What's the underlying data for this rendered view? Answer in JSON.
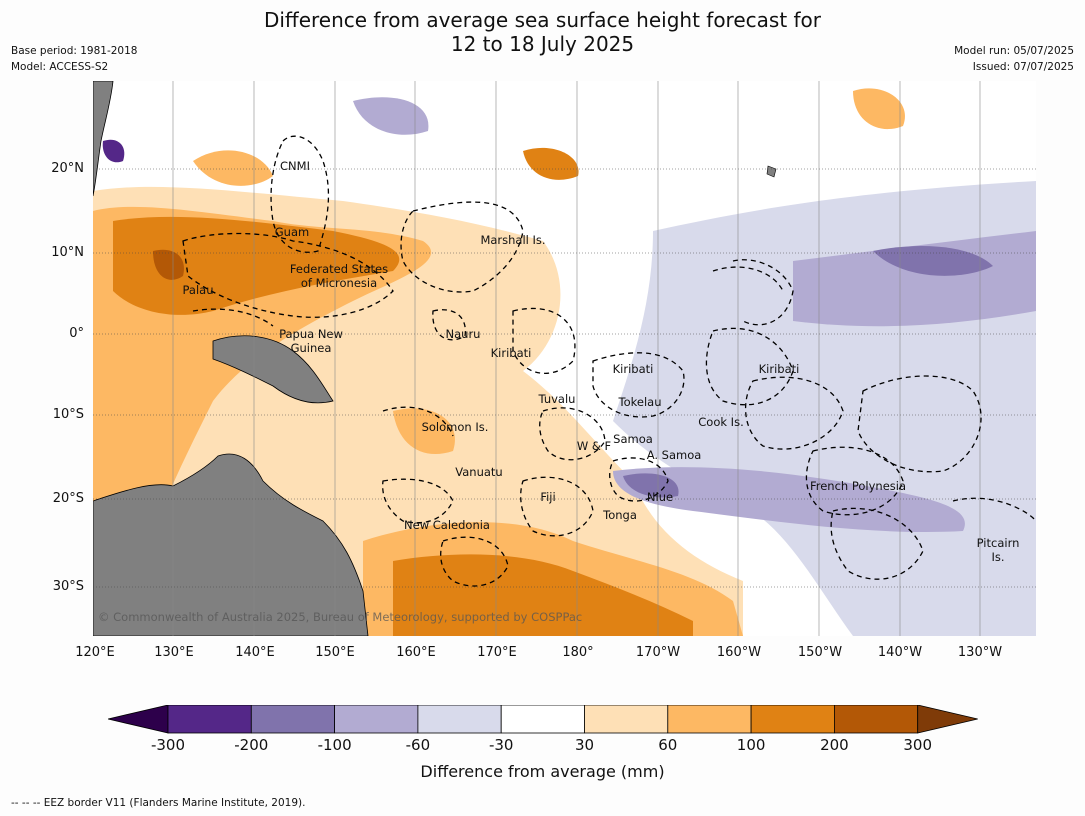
{
  "title_line1": "Difference from average sea surface height forecast for",
  "title_line2": "12 to 18 July 2025",
  "meta_left": {
    "base_period": "Base period: 1981-2018",
    "model": "Model: ACCESS-S2"
  },
  "meta_right": {
    "model_run": "Model run: 05/07/2025",
    "issued": "Issued: 07/07/2025"
  },
  "map": {
    "copyright": "© Commonwealth of Australia 2025, Bureau of Meteorology, supported by COSPPac",
    "lat_labels": [
      "20°N",
      "10°N",
      "0°",
      "10°S",
      "20°S",
      "30°S"
    ],
    "lon_labels": [
      "120°E",
      "130°E",
      "140°E",
      "150°E",
      "160°E",
      "170°E",
      "180°",
      "170°W",
      "160°W",
      "150°W",
      "140°W",
      "130°W"
    ],
    "places": [
      {
        "name": "CNMI",
        "text": "CNMI"
      },
      {
        "name": "Guam",
        "text": "Guam"
      },
      {
        "name": "Marshall Is.",
        "text": "Marshall Is."
      },
      {
        "name": "FSM 1",
        "text": "Federated States"
      },
      {
        "name": "FSM 2",
        "text": "of Micronesia"
      },
      {
        "name": "Palau",
        "text": "Palau"
      },
      {
        "name": "PNG 1",
        "text": "Papua New"
      },
      {
        "name": "PNG 2",
        "text": "Guinea"
      },
      {
        "name": "Nauru",
        "text": "Nauru"
      },
      {
        "name": "Kiribati W",
        "text": "Kiribati"
      },
      {
        "name": "Kiribati C",
        "text": "Kiribati"
      },
      {
        "name": "Kiribati E",
        "text": "Kiribati"
      },
      {
        "name": "Tuvalu",
        "text": "Tuvalu"
      },
      {
        "name": "Tokelau",
        "text": "Tokelau"
      },
      {
        "name": "Cook",
        "text": "Cook Is."
      },
      {
        "name": "Solomon",
        "text": "Solomon Is."
      },
      {
        "name": "Samoa",
        "text": "Samoa"
      },
      {
        "name": "W&F",
        "text": "W & F"
      },
      {
        "name": "A Samoa",
        "text": "A. Samoa"
      },
      {
        "name": "Vanuatu",
        "text": "Vanuatu"
      },
      {
        "name": "Fiji",
        "text": "Fiji"
      },
      {
        "name": "Niue",
        "text": "Niue"
      },
      {
        "name": "French Polynesia",
        "text": "French Polynesia"
      },
      {
        "name": "Tonga",
        "text": "Tonga"
      },
      {
        "name": "New Caledonia",
        "text": "New Caledonia"
      },
      {
        "name": "Pitcairn 1",
        "text": "Pitcairn"
      },
      {
        "name": "Pitcairn 2",
        "text": "Is."
      }
    ]
  },
  "colorbar": {
    "ticks": [
      "-300",
      "-200",
      "-100",
      "-60",
      "-30",
      "30",
      "60",
      "100",
      "200",
      "300"
    ],
    "colors": {
      "under": "#2d004b",
      "bins": [
        "#542788",
        "#8073ac",
        "#b2abd2",
        "#d8daeb",
        "#ffffff",
        "#fee0b6",
        "#fdb863",
        "#e08214",
        "#b35806"
      ],
      "over": "#7f3b08"
    },
    "label": "Difference from average (mm)"
  },
  "footnote": "--  --  -- EEZ border V11 (Flanders Marine Institute, 2019)."
}
